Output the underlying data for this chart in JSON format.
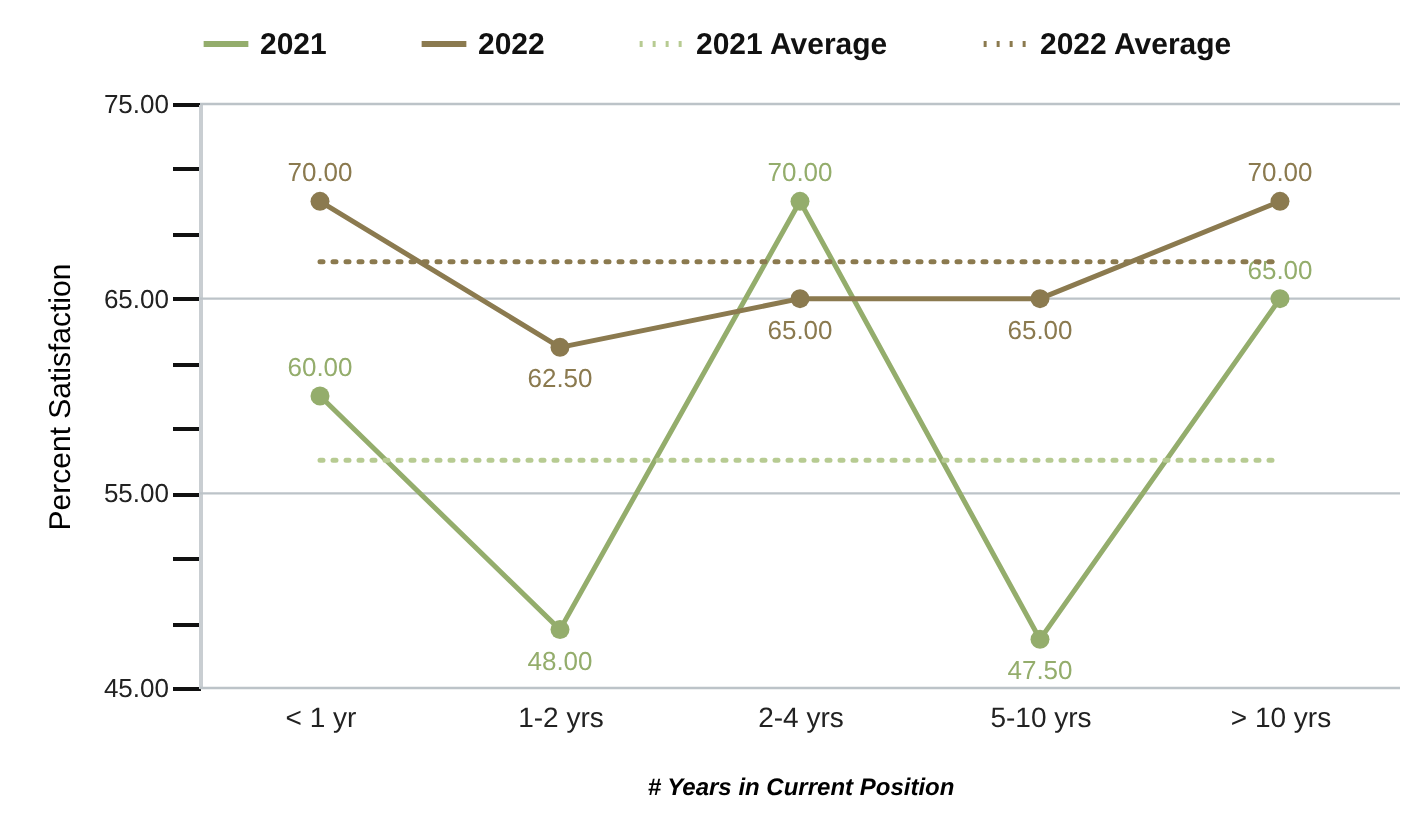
{
  "chart_data": {
    "type": "line",
    "xlabel": "# Years in Current Position",
    "ylabel": "Percent Satisfaction",
    "categories": [
      "< 1 yr",
      "1-2 yrs",
      "2-4 yrs",
      "5-10 yrs",
      "> 10 yrs"
    ],
    "series": [
      {
        "name": "2021",
        "color": "#94ad6c",
        "values": [
          60,
          48,
          70,
          47.5,
          65
        ],
        "value_labels": [
          "60.00",
          "48.00",
          "70.00",
          "47.50",
          "65.00"
        ],
        "marker": "circle",
        "line_style": "solid"
      },
      {
        "name": "2022",
        "color": "#8b7a4f",
        "values": [
          70,
          62.5,
          65,
          65,
          70
        ],
        "value_labels": [
          "70.00",
          "62.50",
          "65.00",
          "65.00",
          "70.00"
        ],
        "marker": "circle",
        "line_style": "solid"
      },
      {
        "name": "2021 Average",
        "color": "#b7cb92",
        "values": [
          56.7,
          56.7,
          56.7,
          56.7,
          56.7
        ],
        "marker": "none",
        "line_style": "dotted"
      },
      {
        "name": "2022 Average",
        "color": "#8b7a4f",
        "values": [
          66.9,
          66.9,
          66.9,
          66.9,
          66.9
        ],
        "marker": "none",
        "line_style": "dotted"
      }
    ],
    "ylim": [
      45,
      75
    ],
    "yticks": [
      {
        "value": 45,
        "label": "45.00"
      },
      {
        "value": 48.33,
        "label": null
      },
      {
        "value": 51.67,
        "label": null
      },
      {
        "value": 55,
        "label": "55.00"
      },
      {
        "value": 58.33,
        "label": null
      },
      {
        "value": 61.67,
        "label": null
      },
      {
        "value": 65,
        "label": "65.00"
      },
      {
        "value": 68.33,
        "label": null
      },
      {
        "value": 71.67,
        "label": null
      },
      {
        "value": 75,
        "label": "75.00"
      }
    ],
    "grid": "y",
    "legend": "top"
  }
}
